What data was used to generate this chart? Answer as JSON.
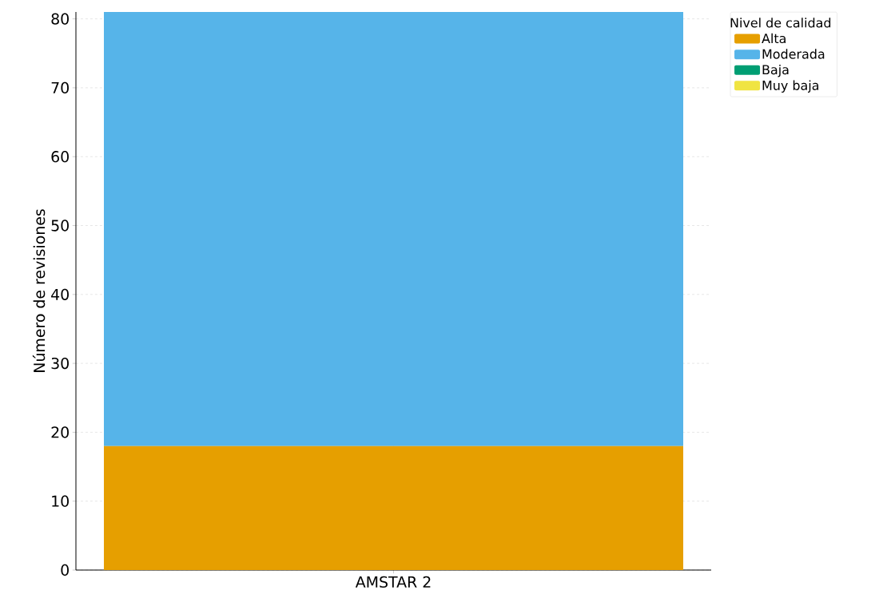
{
  "chart_data": {
    "type": "bar",
    "stacked": true,
    "categories": [
      "AMSTAR 2"
    ],
    "ylabel": "Número de revisiones",
    "legend_title": "Nivel de calidad",
    "series": [
      {
        "name": "Alta",
        "color": "#e69f00",
        "values": [
          18
        ]
      },
      {
        "name": "Moderada",
        "color": "#56b4e9",
        "values": [
          63
        ]
      },
      {
        "name": "Baja",
        "color": "#009e73",
        "values": [
          0
        ]
      },
      {
        "name": "Muy baja",
        "color": "#f0e442",
        "values": [
          0
        ]
      }
    ],
    "ylim": [
      0,
      81
    ],
    "yticks": [
      0,
      10,
      20,
      30,
      40,
      50,
      60,
      70,
      80
    ],
    "grid": true,
    "legend": "top right"
  }
}
